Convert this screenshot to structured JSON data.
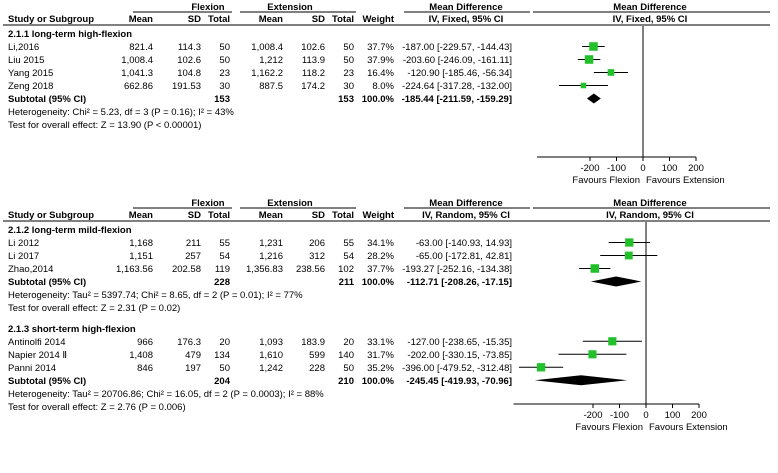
{
  "chart_data": [
    {
      "type": "forest",
      "method_header": "IV, Fixed, 95% CI",
      "plot_method_header": "IV, Fixed, 95% CI",
      "columns": {
        "study": "Study or Subgroup",
        "group1": "Flexion",
        "group2": "Extension",
        "mean": "Mean",
        "sd": "SD",
        "total": "Total",
        "weight": "Weight",
        "effect": "Mean Difference"
      },
      "subgroups": [
        {
          "title": "2.1.1 long-term high-flexion",
          "studies": [
            {
              "name": "Li,2016",
              "m1": "821.4",
              "sd1": "114.3",
              "n1": "50",
              "m2": "1,008.4",
              "sd2": "102.6",
              "n2": "50",
              "weight": "37.7%",
              "ci_text": "-187.00 [-229.57, -144.43]",
              "md": -187.0,
              "lo": -229.57,
              "hi": -144.43,
              "w": 37.7
            },
            {
              "name": "Liu 2015",
              "m1": "1,008.4",
              "sd1": "102.6",
              "n1": "50",
              "m2": "1,212",
              "sd2": "113.9",
              "n2": "50",
              "weight": "37.9%",
              "ci_text": "-203.60 [-246.09, -161.11]",
              "md": -203.6,
              "lo": -246.09,
              "hi": -161.11,
              "w": 37.9
            },
            {
              "name": "Yang 2015",
              "m1": "1,041.3",
              "sd1": "104.8",
              "n1": "23",
              "m2": "1,162.2",
              "sd2": "118.2",
              "n2": "23",
              "weight": "16.4%",
              "ci_text": "-120.90 [-185.46, -56.34]",
              "md": -120.9,
              "lo": -185.46,
              "hi": -56.34,
              "w": 16.4
            },
            {
              "name": "Zeng 2018",
              "m1": "662.86",
              "sd1": "191.53",
              "n1": "30",
              "m2": "887.5",
              "sd2": "174.2",
              "n2": "30",
              "weight": "8.0%",
              "ci_text": "-224.64 [-317.28, -132.00]",
              "md": -224.64,
              "lo": -317.28,
              "hi": -132.0,
              "w": 8.0
            }
          ],
          "subtotal": {
            "label": "Subtotal (95% CI)",
            "n1": "153",
            "n2": "153",
            "weight": "100.0%",
            "ci_text": "-185.44 [-211.59, -159.29]",
            "md": -185.44,
            "lo": -211.59,
            "hi": -159.29
          },
          "heterogeneity": "Heterogeneity: Chi² = 5.23, df = 3 (P = 0.16); I² = 43%",
          "overall": "Test for overall effect: Z = 13.90 (P < 0.00001)"
        }
      ],
      "axis": {
        "min": -400,
        "max": 200,
        "ticks": [
          -200,
          -100,
          0,
          100,
          200
        ],
        "tick_labels": [
          "-200",
          "-100",
          "0",
          "100",
          "200"
        ]
      },
      "favours_left": "Favours Flexion",
      "favours_right": "Favours Extension"
    },
    {
      "type": "forest",
      "method_header": "IV, Random, 95% CI",
      "plot_method_header": "IV, Random, 95% CI",
      "columns": {
        "study": "Study or Subgroup",
        "group1": "Flexion",
        "group2": "Extension",
        "mean": "Mean",
        "sd": "SD",
        "total": "Total",
        "weight": "Weight",
        "effect": "Mean Difference"
      },
      "subgroups": [
        {
          "title": "2.1.2 long-term mild-flexion",
          "studies": [
            {
              "name": "Li 2012",
              "m1": "1,168",
              "sd1": "211",
              "n1": "55",
              "m2": "1,231",
              "sd2": "206",
              "n2": "55",
              "weight": "34.1%",
              "ci_text": "-63.00 [-140.93, 14.93]",
              "md": -63.0,
              "lo": -140.93,
              "hi": 14.93,
              "w": 34.1
            },
            {
              "name": "Li 2017",
              "m1": "1,151",
              "sd1": "257",
              "n1": "54",
              "m2": "1,216",
              "sd2": "312",
              "n2": "54",
              "weight": "28.2%",
              "ci_text": "-65.00 [-172.81, 42.81]",
              "md": -65.0,
              "lo": -172.81,
              "hi": 42.81,
              "w": 28.2
            },
            {
              "name": "Zhao,2014",
              "m1": "1,163.56",
              "sd1": "202.58",
              "n1": "119",
              "m2": "1,356.83",
              "sd2": "238.56",
              "n2": "102",
              "weight": "37.7%",
              "ci_text": "-193.27 [-252.16, -134.38]",
              "md": -193.27,
              "lo": -252.16,
              "hi": -134.38,
              "w": 37.7
            }
          ],
          "subtotal": {
            "label": "Subtotal (95% CI)",
            "n1": "228",
            "n2": "211",
            "weight": "100.0%",
            "ci_text": "-112.71 [-208.26, -17.15]",
            "md": -112.71,
            "lo": -208.26,
            "hi": -17.15
          },
          "heterogeneity": "Heterogeneity: Tau² = 5397.74; Chi² = 8.65, df = 2 (P = 0.01); I² = 77%",
          "overall": "Test for overall effect: Z = 2.31 (P = 0.02)"
        },
        {
          "title": "2.1.3 short-term high-flexion",
          "studies": [
            {
              "name": "Antinolfi 2014",
              "m1": "966",
              "sd1": "176.3",
              "n1": "20",
              "m2": "1,093",
              "sd2": "183.9",
              "n2": "20",
              "weight": "33.1%",
              "ci_text": "-127.00 [-238.65, -15.35]",
              "md": -127.0,
              "lo": -238.65,
              "hi": -15.35,
              "w": 33.1
            },
            {
              "name": "Napier 2014 Ⅱ",
              "m1": "1,408",
              "sd1": "479",
              "n1": "134",
              "m2": "1,610",
              "sd2": "599",
              "n2": "140",
              "weight": "31.7%",
              "ci_text": "-202.00 [-330.15, -73.85]",
              "md": -202.0,
              "lo": -330.15,
              "hi": -73.85,
              "w": 31.7
            },
            {
              "name": "Panni 2014",
              "m1": "846",
              "sd1": "197",
              "n1": "50",
              "m2": "1,242",
              "sd2": "228",
              "n2": "50",
              "weight": "35.2%",
              "ci_text": "-396.00 [-479.52, -312.48]",
              "md": -396.0,
              "lo": -479.52,
              "hi": -312.48,
              "w": 35.2
            }
          ],
          "subtotal": {
            "label": "Subtotal (95% CI)",
            "n1": "204",
            "n2": "210",
            "weight": "100.0%",
            "ci_text": "-245.45 [-419.93, -70.96]",
            "md": -245.45,
            "lo": -419.93,
            "hi": -70.96
          },
          "heterogeneity": "Heterogeneity: Tau² = 20706.86; Chi² = 16.05, df = 2 (P = 0.0003); I² = 88%",
          "overall": "Test for overall effect: Z = 2.76 (P = 0.006)"
        }
      ],
      "axis": {
        "min": -500,
        "max": 200,
        "ticks": [
          -200,
          -100,
          0,
          100,
          200
        ],
        "tick_labels": [
          "-200",
          "-100",
          "0",
          "100",
          "200"
        ]
      },
      "favours_left": "Favours Flexion",
      "favours_right": "Favours Extension"
    }
  ],
  "colors": {
    "marker": "#22c02a",
    "line": "#000000",
    "diamond": "#000000",
    "rule": "#000000"
  }
}
